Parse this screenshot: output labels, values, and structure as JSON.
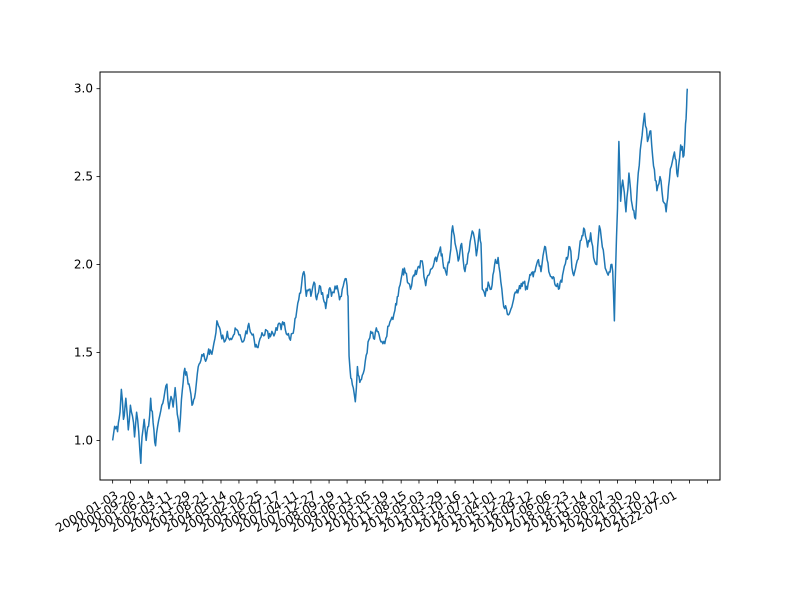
{
  "chart_data": {
    "type": "line",
    "title": "",
    "xlabel": "",
    "ylabel": "",
    "grid": false,
    "legend": "none",
    "line_color": "#1f77b4",
    "x_range": [
      "1999-07-01",
      "2024-06-15"
    ],
    "ylim": [
      0.775,
      3.095
    ],
    "y_ticks": [
      {
        "value": 1.0,
        "label": "1.0"
      },
      {
        "value": 1.5,
        "label": "1.5"
      },
      {
        "value": 2.0,
        "label": "2.0"
      },
      {
        "value": 2.5,
        "label": "2.5"
      },
      {
        "value": 3.0,
        "label": "3.0"
      }
    ],
    "x_ticks": [
      {
        "value": "2000-01-03",
        "label": "2000-01-03"
      },
      {
        "value": "2000-09-20",
        "label": "2000-09-20"
      },
      {
        "value": "2001-06-14",
        "label": "2001-06-14"
      },
      {
        "value": "2002-03-11",
        "label": "2002-03-11"
      },
      {
        "value": "2002-11-29",
        "label": "2002-11-29"
      },
      {
        "value": "2003-08-21",
        "label": "2003-08-21"
      },
      {
        "value": "2004-05-14",
        "label": "2004-05-14"
      },
      {
        "value": "2005-02-02",
        "label": "2005-02-02"
      },
      {
        "value": "2005-10-25",
        "label": "2005-10-25"
      },
      {
        "value": "2006-07-17",
        "label": "2006-07-17"
      },
      {
        "value": "2007-04-11",
        "label": "2007-04-11"
      },
      {
        "value": "2007-12-27",
        "label": "2007-12-27"
      },
      {
        "value": "2008-09-19",
        "label": "2008-09-19"
      },
      {
        "value": "2009-06-11",
        "label": "2009-06-11"
      },
      {
        "value": "2010-03-05",
        "label": "2010-03-05"
      },
      {
        "value": "2010-11-19",
        "label": "2010-11-19"
      },
      {
        "value": "2011-08-15",
        "label": "2011-08-15"
      },
      {
        "value": "2012-05-03",
        "label": "2012-05-03"
      },
      {
        "value": "2013-01-29",
        "label": "2013-01-29"
      },
      {
        "value": "2013-10-16",
        "label": "2013-10-16"
      },
      {
        "value": "2014-07-11",
        "label": "2014-07-11"
      },
      {
        "value": "2015-04-01",
        "label": "2015-04-01"
      },
      {
        "value": "2015-12-22",
        "label": "2015-12-22"
      },
      {
        "value": "2016-09-12",
        "label": "2016-09-12"
      },
      {
        "value": "2017-06-06",
        "label": "2017-06-06"
      },
      {
        "value": "2018-02-23",
        "label": "2018-02-23"
      },
      {
        "value": "2018-11-14",
        "label": "2018-11-14"
      },
      {
        "value": "2019-08-07",
        "label": "2019-08-07"
      },
      {
        "value": "2020-04-30",
        "label": "2020-04-30"
      },
      {
        "value": "2021-01-20",
        "label": "2021-01-20"
      },
      {
        "value": "2021-10-12",
        "label": "2021-10-12"
      },
      {
        "value": "2022-07-01",
        "label": "2022-07-01"
      },
      {
        "value": "2023-03-24",
        "label": ""
      },
      {
        "value": "2023-12-14",
        "label": ""
      }
    ],
    "series": [
      {
        "name": "",
        "points": [
          [
            "2000-01-03",
            1.0
          ],
          [
            "2000-02-01",
            1.08
          ],
          [
            "2000-03-15",
            1.05
          ],
          [
            "2000-04-20",
            1.16
          ],
          [
            "2000-05-10",
            1.29
          ],
          [
            "2000-06-10",
            1.12
          ],
          [
            "2000-07-15",
            1.24
          ],
          [
            "2000-08-20",
            1.06
          ],
          [
            "2000-09-20",
            1.2
          ],
          [
            "2000-10-20",
            1.14
          ],
          [
            "2000-11-20",
            1.02
          ],
          [
            "2000-12-20",
            1.16
          ],
          [
            "2001-01-20",
            1.05
          ],
          [
            "2001-02-20",
            0.87
          ],
          [
            "2001-03-10",
            1.02
          ],
          [
            "2001-04-10",
            1.12
          ],
          [
            "2001-05-10",
            1.0
          ],
          [
            "2001-06-14",
            1.08
          ],
          [
            "2001-07-15",
            1.24
          ],
          [
            "2001-08-20",
            1.1
          ],
          [
            "2001-09-25",
            0.97
          ],
          [
            "2001-10-25",
            1.08
          ],
          [
            "2001-11-25",
            1.14
          ],
          [
            "2001-12-25",
            1.2
          ],
          [
            "2002-01-25",
            1.24
          ],
          [
            "2002-03-11",
            1.32
          ],
          [
            "2002-04-10",
            1.18
          ],
          [
            "2002-05-10",
            1.25
          ],
          [
            "2002-06-10",
            1.19
          ],
          [
            "2002-07-10",
            1.3
          ],
          [
            "2002-08-10",
            1.15
          ],
          [
            "2002-09-10",
            1.05
          ],
          [
            "2002-10-10",
            1.23
          ],
          [
            "2002-11-29",
            1.41
          ],
          [
            "2003-01-05",
            1.36
          ],
          [
            "2003-02-10",
            1.3
          ],
          [
            "2003-03-15",
            1.2
          ],
          [
            "2003-04-20",
            1.24
          ],
          [
            "2003-06-01",
            1.38
          ],
          [
            "2003-07-10",
            1.44
          ],
          [
            "2003-08-21",
            1.48
          ],
          [
            "2003-10-01",
            1.45
          ],
          [
            "2003-11-15",
            1.52
          ],
          [
            "2004-01-01",
            1.49
          ],
          [
            "2004-02-15",
            1.58
          ],
          [
            "2004-03-15",
            1.68
          ],
          [
            "2004-05-14",
            1.6
          ],
          [
            "2004-07-01",
            1.56
          ],
          [
            "2004-08-15",
            1.62
          ],
          [
            "2004-10-01",
            1.58
          ],
          [
            "2004-11-15",
            1.6
          ],
          [
            "2005-01-01",
            1.63
          ],
          [
            "2005-02-02",
            1.6
          ],
          [
            "2005-03-20",
            1.56
          ],
          [
            "2005-05-01",
            1.59
          ],
          [
            "2005-06-15",
            1.65
          ],
          [
            "2005-08-01",
            1.61
          ],
          [
            "2005-09-15",
            1.57
          ],
          [
            "2005-10-25",
            1.53
          ],
          [
            "2005-12-10",
            1.58
          ],
          [
            "2006-01-20",
            1.6
          ],
          [
            "2006-03-01",
            1.63
          ],
          [
            "2006-04-15",
            1.58
          ],
          [
            "2006-06-01",
            1.62
          ],
          [
            "2006-07-17",
            1.61
          ],
          [
            "2006-09-01",
            1.66
          ],
          [
            "2006-10-15",
            1.63
          ],
          [
            "2006-12-01",
            1.67
          ],
          [
            "2007-01-15",
            1.6
          ],
          [
            "2007-03-01",
            1.57
          ],
          [
            "2007-04-11",
            1.61
          ],
          [
            "2007-05-20",
            1.7
          ],
          [
            "2007-07-01",
            1.8
          ],
          [
            "2007-08-10",
            1.88
          ],
          [
            "2007-09-15",
            1.96
          ],
          [
            "2007-10-20",
            1.82
          ],
          [
            "2007-12-01",
            1.86
          ],
          [
            "2007-12-27",
            1.82
          ],
          [
            "2008-02-10",
            1.9
          ],
          [
            "2008-03-20",
            1.8
          ],
          [
            "2008-05-01",
            1.88
          ],
          [
            "2008-06-15",
            1.84
          ],
          [
            "2008-08-01",
            1.75
          ],
          [
            "2008-09-19",
            1.86
          ],
          [
            "2008-10-25",
            1.82
          ],
          [
            "2008-12-01",
            1.84
          ],
          [
            "2009-01-15",
            1.88
          ],
          [
            "2009-02-20",
            1.8
          ],
          [
            "2009-04-01",
            1.86
          ],
          [
            "2009-05-15",
            1.92
          ],
          [
            "2009-06-11",
            1.88
          ],
          [
            "2009-06-25",
            1.82
          ],
          [
            "2009-07-10",
            1.48
          ],
          [
            "2009-07-25",
            1.4
          ],
          [
            "2009-08-15",
            1.35
          ],
          [
            "2009-09-10",
            1.3
          ],
          [
            "2009-10-10",
            1.22
          ],
          [
            "2009-11-10",
            1.42
          ],
          [
            "2009-12-15",
            1.33
          ],
          [
            "2010-01-20",
            1.37
          ],
          [
            "2010-03-05",
            1.45
          ],
          [
            "2010-04-15",
            1.56
          ],
          [
            "2010-05-25",
            1.62
          ],
          [
            "2010-07-05",
            1.58
          ],
          [
            "2010-08-15",
            1.64
          ],
          [
            "2010-09-25",
            1.6
          ],
          [
            "2010-11-19",
            1.55
          ],
          [
            "2011-01-01",
            1.58
          ],
          [
            "2011-02-15",
            1.65
          ],
          [
            "2011-04-01",
            1.7
          ],
          [
            "2011-05-15",
            1.74
          ],
          [
            "2011-07-01",
            1.82
          ],
          [
            "2011-08-15",
            1.92
          ],
          [
            "2011-10-01",
            1.98
          ],
          [
            "2011-11-15",
            1.9
          ],
          [
            "2011-12-31",
            1.86
          ],
          [
            "2012-02-15",
            1.94
          ],
          [
            "2012-05-03",
            1.99
          ],
          [
            "2012-06-20",
            2.02
          ],
          [
            "2012-08-10",
            1.88
          ],
          [
            "2012-09-25",
            1.94
          ],
          [
            "2012-11-15",
            1.98
          ],
          [
            "2013-01-29",
            2.04
          ],
          [
            "2013-03-15",
            2.1
          ],
          [
            "2013-05-01",
            1.98
          ],
          [
            "2013-06-15",
            1.94
          ],
          [
            "2013-08-01",
            2.05
          ],
          [
            "2013-09-10",
            2.22
          ],
          [
            "2013-10-16",
            2.12
          ],
          [
            "2013-12-01",
            2.02
          ],
          [
            "2014-01-20",
            2.12
          ],
          [
            "2014-03-10",
            1.96
          ],
          [
            "2014-04-25",
            2.06
          ],
          [
            "2014-06-10",
            2.16
          ],
          [
            "2014-07-11",
            2.18
          ],
          [
            "2014-08-25",
            2.05
          ],
          [
            "2014-10-10",
            2.2
          ],
          [
            "2014-11-01",
            2.12
          ],
          [
            "2014-11-20",
            1.86
          ],
          [
            "2015-01-01",
            1.82
          ],
          [
            "2015-02-15",
            1.9
          ],
          [
            "2015-04-01",
            1.86
          ],
          [
            "2015-05-20",
            2.0
          ],
          [
            "2015-07-10",
            2.04
          ],
          [
            "2015-08-20",
            1.9
          ],
          [
            "2015-10-01",
            1.76
          ],
          [
            "2015-12-22",
            1.72
          ],
          [
            "2016-02-10",
            1.78
          ],
          [
            "2016-04-01",
            1.84
          ],
          [
            "2016-05-20",
            1.88
          ],
          [
            "2016-07-10",
            1.9
          ],
          [
            "2016-09-12",
            1.86
          ],
          [
            "2016-11-01",
            1.94
          ],
          [
            "2016-12-20",
            1.96
          ],
          [
            "2017-02-10",
            2.02
          ],
          [
            "2017-04-01",
            1.96
          ],
          [
            "2017-05-15",
            2.08
          ],
          [
            "2017-06-06",
            2.1
          ],
          [
            "2017-07-25",
            1.96
          ],
          [
            "2017-09-15",
            1.92
          ],
          [
            "2017-11-01",
            1.88
          ],
          [
            "2017-12-15",
            1.86
          ],
          [
            "2018-02-01",
            1.9
          ],
          [
            "2018-02-23",
            1.96
          ],
          [
            "2018-04-10",
            2.04
          ],
          [
            "2018-05-30",
            2.1
          ],
          [
            "2018-07-15",
            1.95
          ],
          [
            "2018-09-01",
            2.0
          ],
          [
            "2018-10-15",
            2.08
          ],
          [
            "2018-11-14",
            2.14
          ],
          [
            "2019-01-01",
            2.2
          ],
          [
            "2019-02-15",
            2.1
          ],
          [
            "2019-04-01",
            2.18
          ],
          [
            "2019-05-15",
            2.04
          ],
          [
            "2019-06-30",
            2.0
          ],
          [
            "2019-08-07",
            2.22
          ],
          [
            "2019-09-20",
            2.1
          ],
          [
            "2019-11-01",
            1.98
          ],
          [
            "2019-12-15",
            1.94
          ],
          [
            "2020-01-25",
            2.0
          ],
          [
            "2020-02-20",
            1.96
          ],
          [
            "2020-03-15",
            1.68
          ],
          [
            "2020-04-01",
            1.96
          ],
          [
            "2020-04-30",
            2.32
          ],
          [
            "2020-05-20",
            2.7
          ],
          [
            "2020-06-15",
            2.36
          ],
          [
            "2020-07-15",
            2.48
          ],
          [
            "2020-09-01",
            2.3
          ],
          [
            "2020-10-15",
            2.52
          ],
          [
            "2020-12-01",
            2.34
          ],
          [
            "2021-01-20",
            2.26
          ],
          [
            "2021-03-01",
            2.52
          ],
          [
            "2021-04-15",
            2.7
          ],
          [
            "2021-06-01",
            2.86
          ],
          [
            "2021-07-15",
            2.7
          ],
          [
            "2021-09-01",
            2.76
          ],
          [
            "2021-10-12",
            2.56
          ],
          [
            "2021-12-01",
            2.42
          ],
          [
            "2022-01-15",
            2.5
          ],
          [
            "2022-03-01",
            2.36
          ],
          [
            "2022-04-15",
            2.3
          ],
          [
            "2022-06-01",
            2.48
          ],
          [
            "2022-07-01",
            2.56
          ],
          [
            "2022-08-15",
            2.64
          ],
          [
            "2022-10-01",
            2.5
          ],
          [
            "2022-11-15",
            2.68
          ],
          [
            "2023-01-01",
            2.62
          ],
          [
            "2023-01-25",
            2.8
          ],
          [
            "2023-02-10",
            2.9
          ],
          [
            "2023-02-20",
            3.0
          ]
        ]
      }
    ]
  }
}
